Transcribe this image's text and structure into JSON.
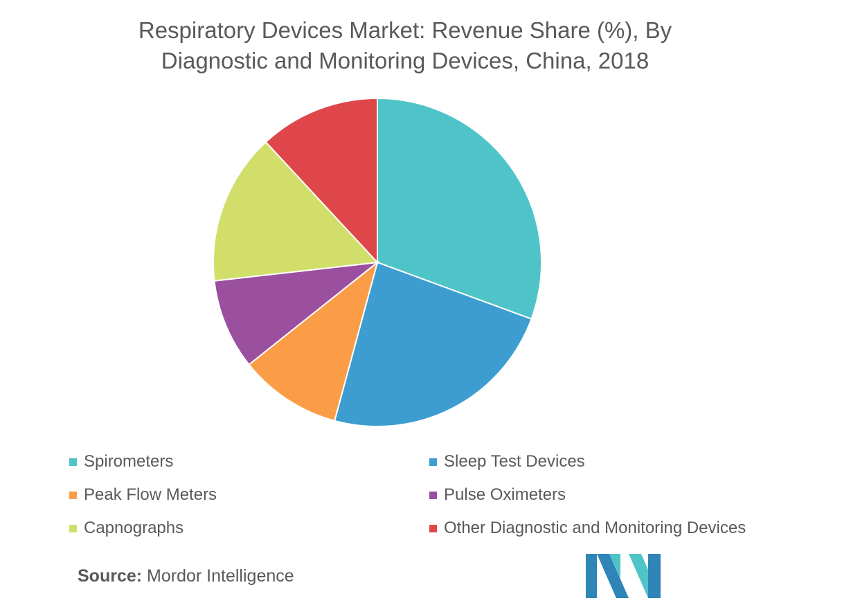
{
  "chart_data": {
    "type": "pie",
    "title_lines": [
      "Respiratory Devices Market: Revenue Share (%), By",
      "Diagnostic and Monitoring Devices, China, 2018"
    ],
    "categories": [
      "Spirometers",
      "Sleep Test Devices",
      "Peak Flow Meters",
      "Pulse Oximeters",
      "Capnographs",
      "Other Diagnostic and Monitoring Devices"
    ],
    "values": [
      30.6,
      23.6,
      10.1,
      8.9,
      14.9,
      11.9
    ],
    "colors": [
      "#4fc4c8",
      "#3d9dd1",
      "#fb9d47",
      "#9b4f9f",
      "#d1df6a",
      "#de4649"
    ],
    "legend_placement": "bottom"
  },
  "source": {
    "label": "Source:",
    "text": "Mordor Intelligence"
  },
  "logo": {
    "icon": "mordor-intelligence-logo-icon",
    "colors": [
      "#2f84b8",
      "#4fc4c8"
    ]
  }
}
